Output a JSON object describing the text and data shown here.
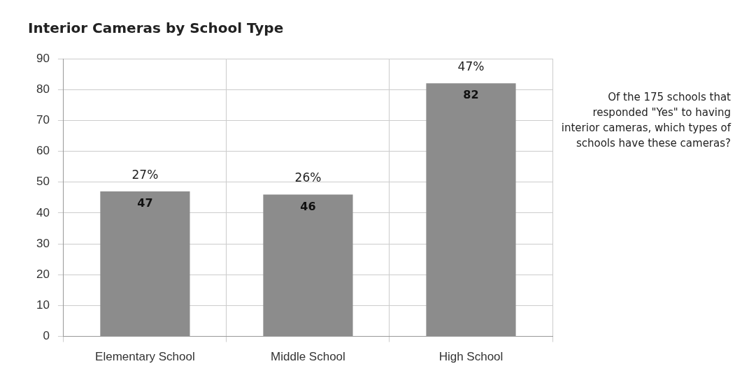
{
  "chart_data": {
    "type": "bar",
    "title": "Interior Cameras by School Type",
    "categories": [
      "Elementary School",
      "Middle School",
      "High School"
    ],
    "values": [
      47,
      46,
      82
    ],
    "color": "#8c8c8c",
    "ylim": [
      0,
      90
    ],
    "yticks": [
      0,
      10,
      20,
      30,
      40,
      50,
      60,
      70,
      80,
      90
    ],
    "grid": true,
    "data_labels": true,
    "annotations": [
      {
        "text": "27%",
        "x": "Elementary School",
        "y": 47
      },
      {
        "text": "26%",
        "x": "Middle School",
        "y": 46
      },
      {
        "text": "47%",
        "x": "High School",
        "y": 82
      },
      "Of the 175 schools that responded \"Yes\" to having interior cameras, which types of schools have these cameras?"
    ]
  }
}
